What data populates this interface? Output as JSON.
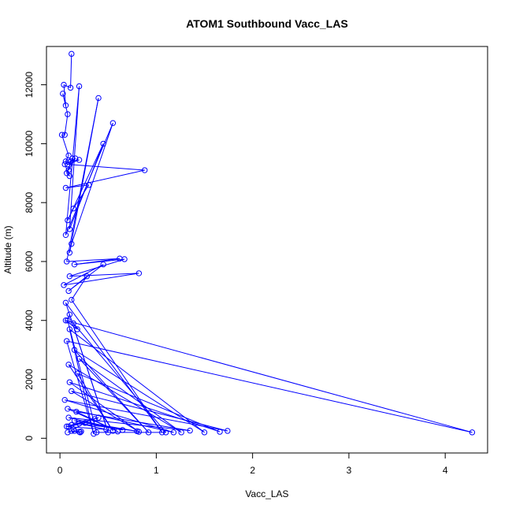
{
  "chart_data": {
    "type": "line",
    "title": "ATOM1 Southbound Vacc_LAS",
    "xlabel": "Vacc_LAS",
    "ylabel": "Altitude (m)",
    "xlim": [
      -0.14,
      4.44
    ],
    "ylim": [
      -500,
      13300
    ],
    "x_ticks": [
      0,
      1,
      2,
      3,
      4
    ],
    "y_ticks": [
      0,
      2000,
      4000,
      6000,
      8000,
      10000,
      12000
    ],
    "grid": false,
    "legend": "none",
    "series_color": "#0000ff",
    "marker": "open-circle",
    "series": [
      {
        "x": [
          0.12,
          0.11,
          0.04,
          0.06,
          0.03,
          0.08,
          0.05,
          0.02,
          0.09,
          0.06,
          0.13,
          0.07,
          0.1,
          0.05,
          0.16,
          0.09,
          0.11,
          0.2,
          0.08,
          0.88,
          0.06,
          0.3,
          0.14,
          0.08,
          0.45,
          0.1,
          0.2,
          0.06,
          0.55,
          0.12,
          0.1,
          0.4,
          0.07,
          0.62,
          0.15,
          0.67,
          0.1,
          0.82,
          0.04,
          0.45,
          0.09,
          0.28,
          0.12,
          1.06,
          0.06,
          0.5,
          0.1,
          0.08,
          0.38,
          1.1,
          0.14,
          0.18,
          0.06,
          4.28,
          0.07,
          0.35,
          0.1,
          1.5,
          0.15,
          0.92,
          0.2,
          1.26,
          0.09,
          0.55,
          0.18,
          1.66,
          0.1,
          0.82,
          0.12,
          1.74,
          0.05,
          1.18,
          0.08,
          0.6,
          0.17,
          1.35,
          0.09,
          0.65,
          0.15,
          0.8,
          0.2,
          0.48,
          0.07,
          0.36,
          0.12,
          0.4,
          0.09,
          0.26,
          0.14,
          0.15,
          0.2,
          0.22,
          0.21,
          0.12,
          0.08
        ],
        "y": [
          13050,
          11900,
          12000,
          11300,
          11700,
          11000,
          10300,
          10300,
          9600,
          9400,
          9500,
          9000,
          8900,
          9300,
          9500,
          9100,
          9400,
          9450,
          9300,
          9100,
          8500,
          8600,
          7800,
          7400,
          10000,
          7100,
          11950,
          6900,
          10700,
          6600,
          6300,
          11550,
          6000,
          6100,
          5900,
          6080,
          5500,
          5600,
          5200,
          5900,
          5000,
          5500,
          4700,
          200,
          4600,
          200,
          4200,
          4000,
          200,
          200,
          3900,
          3700,
          4000,
          200,
          3300,
          150,
          3700,
          200,
          3000,
          200,
          2700,
          200,
          2500,
          250,
          2200,
          220,
          1900,
          220,
          1600,
          250,
          1300,
          200,
          1000,
          230,
          900,
          260,
          700,
          280,
          600,
          240,
          500,
          300,
          400,
          650,
          450,
          700,
          400,
          520,
          300,
          250,
          220,
          230,
          200,
          250,
          200
        ]
      }
    ]
  }
}
